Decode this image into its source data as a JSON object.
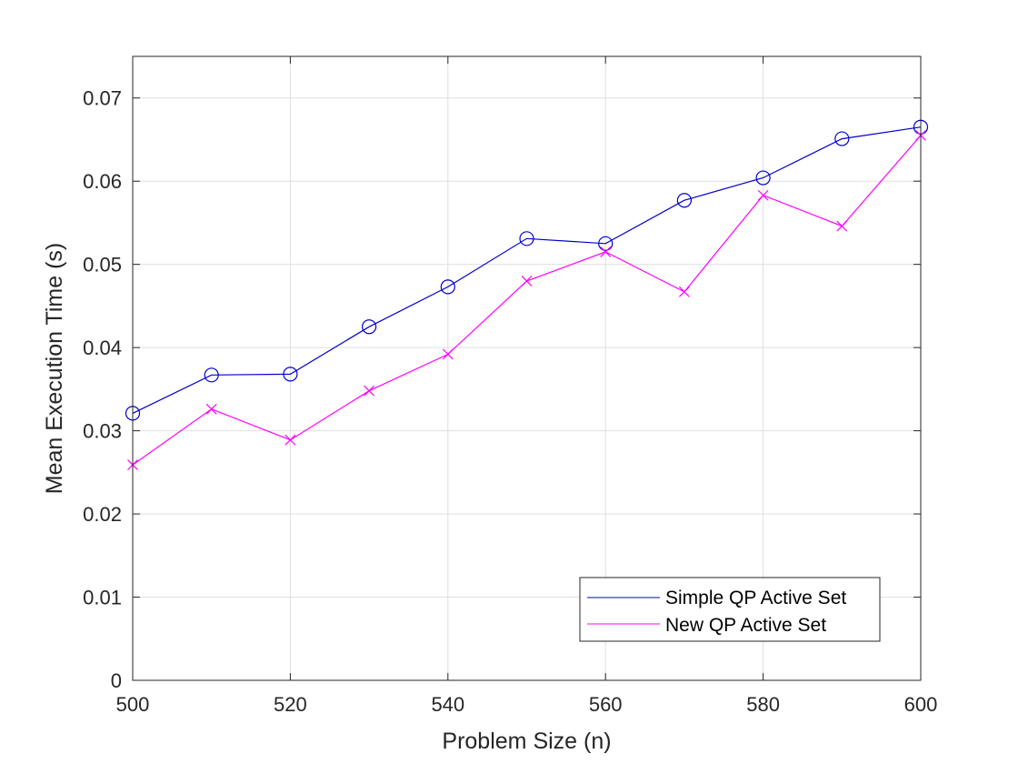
{
  "chart_data": {
    "type": "line",
    "title": "",
    "xlabel": "Problem Size (n)",
    "ylabel": "Mean Execution Time (s)",
    "xlim": [
      500,
      600
    ],
    "ylim": [
      0,
      0.075
    ],
    "xticks": [
      500,
      520,
      540,
      560,
      580,
      600
    ],
    "xtick_labels": [
      "500",
      "520",
      "540",
      "560",
      "580",
      "600"
    ],
    "yticks": [
      0,
      0.01,
      0.02,
      0.03,
      0.04,
      0.05,
      0.06,
      0.07
    ],
    "ytick_labels": [
      "0",
      "0.01",
      "0.02",
      "0.03",
      "0.04",
      "0.05",
      "0.06",
      "0.07"
    ],
    "grid": true,
    "legend_position": "bottom-right",
    "x": [
      500,
      510,
      520,
      530,
      540,
      550,
      560,
      570,
      580,
      590,
      600
    ],
    "series": [
      {
        "name": "Simple QP Active Set",
        "color": "#0000cc",
        "marker": "circle",
        "values": [
          0.0321,
          0.0367,
          0.0368,
          0.0425,
          0.0473,
          0.0531,
          0.0525,
          0.0577,
          0.0604,
          0.0651,
          0.0665
        ]
      },
      {
        "name": "New QP Active Set",
        "color": "#ff00ff",
        "marker": "x",
        "values": [
          0.0259,
          0.0326,
          0.0289,
          0.0348,
          0.0392,
          0.048,
          0.0515,
          0.0467,
          0.0583,
          0.0546,
          0.0655
        ]
      }
    ]
  }
}
